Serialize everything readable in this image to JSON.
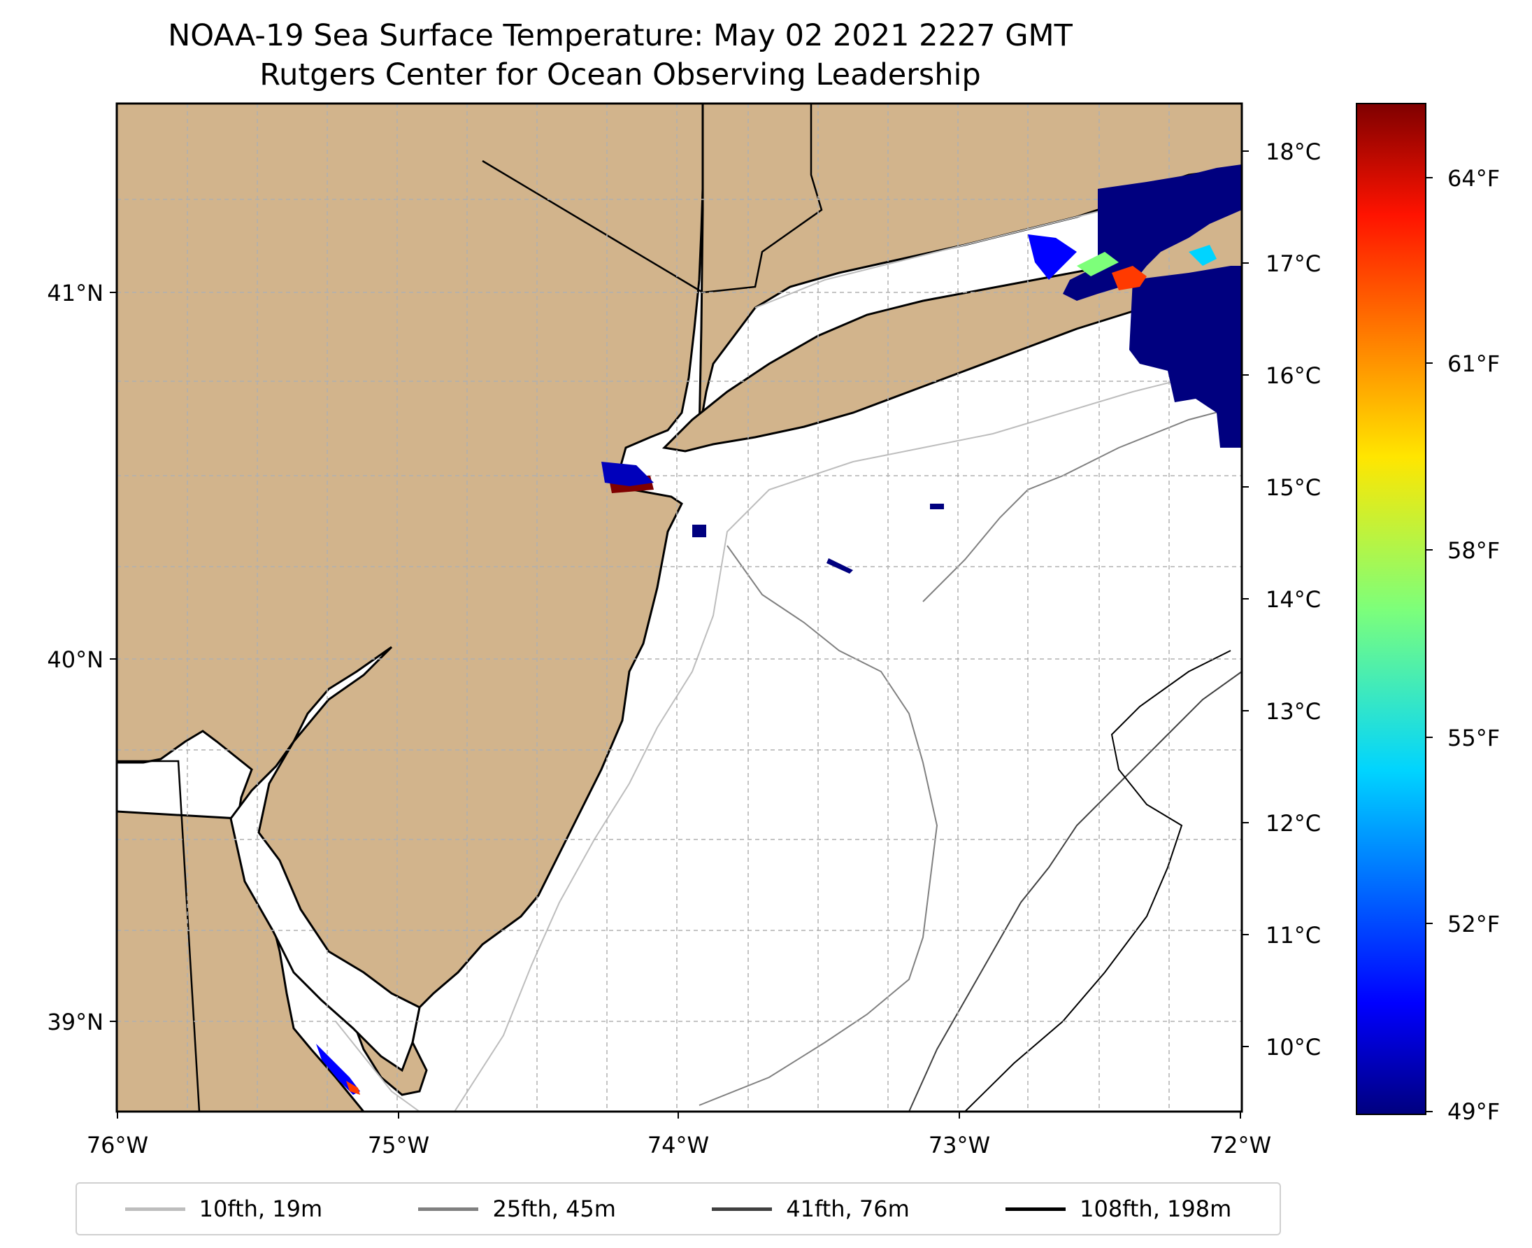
{
  "title": {
    "line1": "NOAA-19 Sea Surface Temperature: May 02 2021 2227 GMT",
    "line2": "Rutgers Center for Ocean Observing Leadership"
  },
  "map": {
    "lon_range": [
      -76,
      -72
    ],
    "lat_range": [
      38.7,
      41.5
    ],
    "lon_ticks": [
      "76°W",
      "75°W",
      "74°W",
      "73°W",
      "72°W"
    ],
    "lat_ticks": [
      "41°N",
      "40°N",
      "39°N"
    ],
    "land_color": "#d2b48c",
    "water_color": "#ffffff",
    "gridlines": true
  },
  "colorbar": {
    "colormap": "jet",
    "celsius_ticks": [
      "18°C",
      "17°C",
      "16°C",
      "15°C",
      "14°C",
      "13°C",
      "12°C",
      "11°C",
      "10°C"
    ],
    "fahrenheit_ticks": [
      "64°F",
      "61°F",
      "58°F",
      "55°F",
      "52°F",
      "49°F"
    ],
    "celsius_range": [
      9.5,
      18.5
    ]
  },
  "legend": {
    "items": [
      {
        "label": "10fth, 19m",
        "color": "#bdbdbd"
      },
      {
        "label": "25fth, 45m",
        "color": "#808080"
      },
      {
        "label": "41fth, 76m",
        "color": "#404040"
      },
      {
        "label": "108fth, 198m",
        "color": "#000000"
      }
    ]
  }
}
